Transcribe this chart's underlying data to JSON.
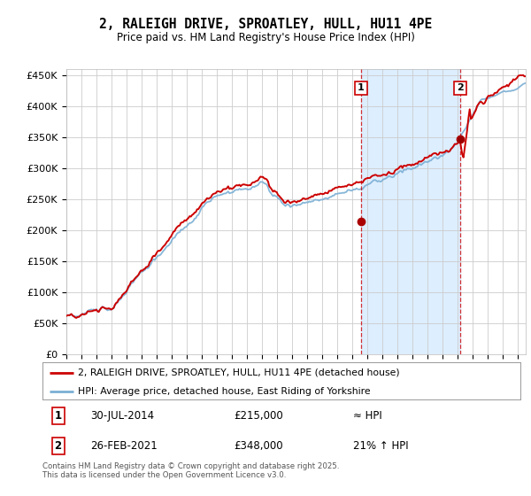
{
  "title": "2, RALEIGH DRIVE, SPROATLEY, HULL, HU11 4PE",
  "subtitle": "Price paid vs. HM Land Registry's House Price Index (HPI)",
  "ylim": [
    0,
    460000
  ],
  "xlim_start": 1995.0,
  "xlim_end": 2025.5,
  "sale1_date": 2014.57,
  "sale1_price": 215000,
  "sale1_label": "1",
  "sale2_date": 2021.15,
  "sale2_price": 348000,
  "sale2_label": "2",
  "property_line_color": "#cc0000",
  "hpi_line_color": "#7aafd4",
  "sale_dot_color": "#aa0000",
  "shaded_region_color": "#ddeeff",
  "legend_property": "2, RALEIGH DRIVE, SPROATLEY, HULL, HU11 4PE (detached house)",
  "legend_hpi": "HPI: Average price, detached house, East Riding of Yorkshire",
  "annotation1": "30-JUL-2014",
  "annotation1_price": "£215,000",
  "annotation1_hpi": "≈ HPI",
  "annotation2": "26-FEB-2021",
  "annotation2_price": "£348,000",
  "annotation2_hpi": "21% ↑ HPI",
  "footnote": "Contains HM Land Registry data © Crown copyright and database right 2025.\nThis data is licensed under the Open Government Licence v3.0.",
  "background_color": "#ffffff",
  "grid_color": "#cccccc"
}
